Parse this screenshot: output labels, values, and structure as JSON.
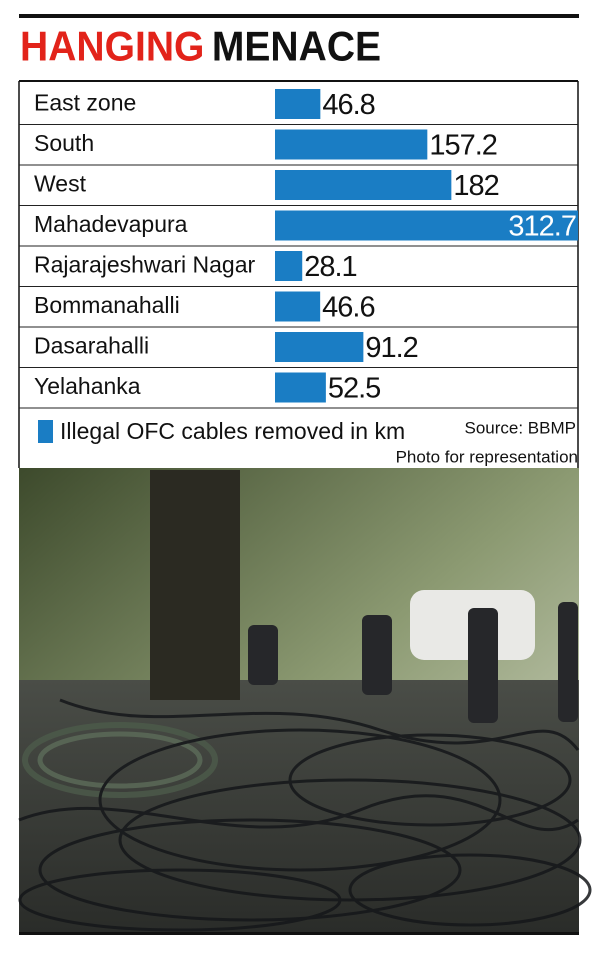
{
  "chart_data": {
    "type": "bar",
    "orientation": "horizontal",
    "title": [
      {
        "text": "HANGING",
        "color": "#e2231a"
      },
      {
        "text": "MENACE",
        "color": "#111111"
      }
    ],
    "categories": [
      "East zone",
      "South",
      "West",
      "Mahadevapura",
      "Rajarajeshwari Nagar",
      "Bommanahalli",
      "Dasarahalli",
      "Yelahanka"
    ],
    "series": [
      {
        "name": "Illegal OFC cables removed in km",
        "color": "#1a7dc4",
        "values": [
          46.8,
          157.2,
          182,
          312.7,
          28.1,
          46.6,
          91.2,
          52.5
        ]
      }
    ],
    "source": "Source: BBMP",
    "photo_caption": "Photo for representation"
  }
}
